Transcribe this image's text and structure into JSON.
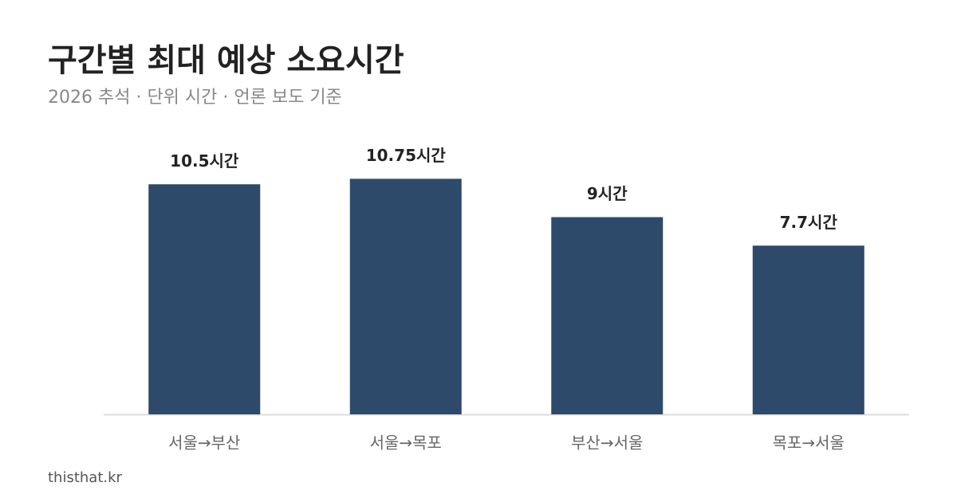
{
  "chart_data": {
    "type": "bar",
    "title": "구간별 최대 예상 소요시간",
    "subtitle": "2026 추석 · 단위 시간 · 언론 보도 기준",
    "source": "thisthat.kr",
    "categories": [
      "서울→부산",
      "서울→목포",
      "부산→서울",
      "목포→서울"
    ],
    "values": [
      10.5,
      10.75,
      9,
      7.7
    ],
    "value_labels": [
      "10.5시간",
      "10.75시간",
      "9시간",
      "7.7시간"
    ],
    "color": "#2d4a6b",
    "ylim": [
      0,
      12
    ]
  }
}
